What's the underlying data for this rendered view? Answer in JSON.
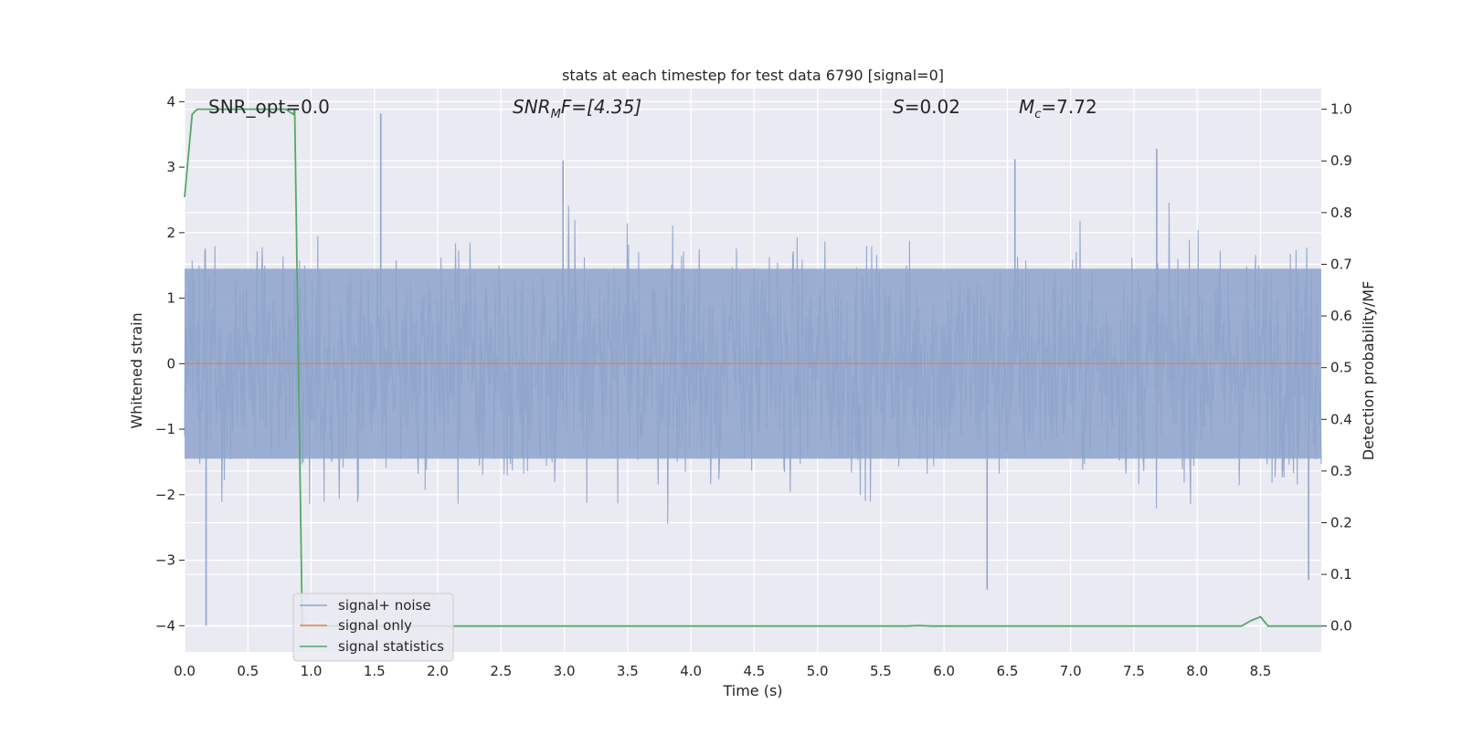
{
  "chart_data": {
    "type": "line",
    "title": "stats at each timestep for test data 6790 [signal=0]",
    "xlabel": "Time (s)",
    "ylabel_left": "Whitened strain",
    "ylabel_right": "Detection probability/MF",
    "xlim": [
      0.0,
      8.98
    ],
    "ylim_left": [
      -4.4,
      4.2
    ],
    "ylim_right": [
      -0.05,
      1.04
    ],
    "x_ticks": [
      0.0,
      0.5,
      1.0,
      1.5,
      2.0,
      2.5,
      3.0,
      3.5,
      4.0,
      4.5,
      5.0,
      5.5,
      6.0,
      6.5,
      7.0,
      7.5,
      8.0,
      8.5
    ],
    "x_tick_labels": [
      "0.0",
      "0.5",
      "1.0",
      "1.5",
      "2.0",
      "2.5",
      "3.0",
      "3.5",
      "4.0",
      "4.5",
      "5.0",
      "5.5",
      "6.0",
      "6.5",
      "7.0",
      "7.5",
      "8.0",
      "8.5"
    ],
    "y_left_ticks": [
      -4,
      -3,
      -2,
      -1,
      0,
      1,
      2,
      3,
      4
    ],
    "y_left_tick_labels": [
      "−4",
      "−3",
      "−2",
      "−1",
      "0",
      "1",
      "2",
      "3",
      "4"
    ],
    "y_right_ticks": [
      0.0,
      0.1,
      0.2,
      0.3,
      0.4,
      0.5,
      0.6,
      0.7,
      0.8,
      0.9,
      1.0
    ],
    "y_right_tick_labels": [
      "0.0",
      "0.1",
      "0.2",
      "0.3",
      "0.4",
      "0.5",
      "0.6",
      "0.7",
      "0.8",
      "0.9",
      "1.0"
    ],
    "grid": true,
    "legend_placement": "lower-left",
    "annotations": {
      "snr_opt": "SNR_opt=0.0",
      "snr_mf_base": "SNR",
      "snr_mf_sub": "M",
      "snr_mf_rest": "F=[4.35]",
      "s_italic": "S",
      "s_rest": "=0.02",
      "mc_base": "M",
      "mc_sub": "c",
      "mc_rest": "=7.72"
    },
    "series": [
      {
        "name": "signal+ noise",
        "axis": "left",
        "color": "#8fa5cc",
        "description_of_values": "whitened strain noise, approx. Gaussian, amplitude mostly within ±2.5",
        "peaks": [
          [
            0.17,
            -4.0
          ],
          [
            1.55,
            3.82
          ],
          [
            2.99,
            3.1
          ],
          [
            6.34,
            -3.45
          ],
          [
            6.56,
            3.12
          ],
          [
            7.68,
            3.28
          ],
          [
            8.88,
            -3.3
          ]
        ],
        "band_upper": 1.45,
        "band_lower": -1.45
      },
      {
        "name": "signal only",
        "axis": "left",
        "color": "#dd8452",
        "x": [
          0.0,
          8.98
        ],
        "y": [
          0.0,
          0.0
        ]
      },
      {
        "name": "signal statistics",
        "axis": "right",
        "color": "#55a868",
        "x": [
          0.0,
          0.06,
          0.1,
          0.2,
          0.4,
          0.6,
          0.8,
          0.86,
          0.87,
          0.93,
          1.0,
          2.0,
          3.0,
          4.0,
          5.0,
          5.7,
          5.8,
          5.9,
          6.5,
          7.5,
          8.35,
          8.42,
          8.5,
          8.56,
          8.7,
          8.98
        ],
        "y": [
          0.83,
          0.99,
          1.0,
          1.0,
          1.0,
          1.0,
          1.0,
          0.99,
          1.0,
          0.0,
          0.0,
          0.0,
          0.0,
          0.0,
          0.0,
          0.0,
          0.001,
          0.0,
          0.0,
          0.0,
          0.0,
          0.01,
          0.018,
          0.0,
          0.0,
          0.0
        ]
      }
    ]
  },
  "colors": {
    "plot_bg": "#eaeaf2",
    "grid": "#ffffff",
    "noise": "#8fa5cc",
    "signal": "#dd8452",
    "stats": "#55a868"
  }
}
